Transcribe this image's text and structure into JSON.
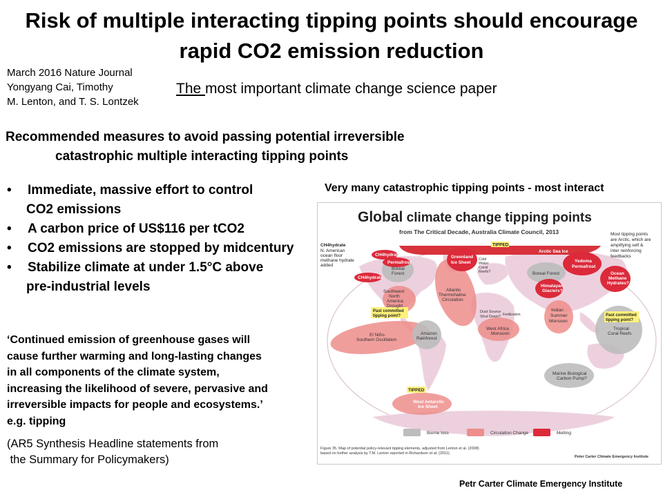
{
  "slide": {
    "title_line1": "Risk of multiple interacting tipping points should encourage",
    "title_line2": "rapid CO2 emission reduction",
    "citation_lines": [
      "March 2016 Nature Journal",
      "Yongyang Cai, Timothy",
      "M. Lenton,  and T. S. Lontzek"
    ],
    "subtitle_underlined": "The ",
    "subtitle_rest": "most important climate change science paper",
    "recommended_line1": "Recommended measures to avoid passing potential irreversible",
    "recommended_line2": "catastrophic  multiple interacting  tipping  points",
    "bullet_symbol": "•",
    "bullets": [
      {
        "text": "Immediate, massive effort to control",
        "cont": "CO2 emissions"
      },
      {
        "text": "A carbon price of US$116 per tCO2",
        "cont": ""
      },
      {
        "text": "CO2 emissions are stopped by midcentury",
        "cont": ""
      },
      {
        "text": "Stabilize climate at under 1.5°C above",
        "cont": "pre-industrial levels"
      }
    ],
    "quote_lines": [
      "‘Continued  emission  of greenhouse gases will",
      "cause further warming and long-lasting  changes",
      "in all components of the climate system,",
      "increasing the likelihood of severe, pervasive and",
      "irreversible impacts for people and ecosystems.’",
      "e.g. tipping"
    ],
    "ar5_lines": [
      "(AR5 Synthesis Headline statements from",
      " the Summary for Policymakers)"
    ],
    "map_heading": "Very many  catastrophic tipping points  - most interact",
    "footer_credit": "Petr Carter Climate Emergency Institute"
  },
  "map": {
    "title_bold": "Global",
    "title_rest": " climate change tipping points",
    "source": "from The Critical Decade, Australia Climate Council, 2013",
    "note_right": [
      "Most tipping points",
      "are Arctic, which are",
      "amplifying self &",
      "inter reinforcing",
      "feedbacks"
    ],
    "note_left": [
      "CH4hydrate",
      "N. American",
      "ocean floor",
      "methane hydrate",
      "added"
    ],
    "labels": {
      "ch4_1": "CH4hydrate",
      "ch4_2": "CH4hydrate",
      "permafrost": "Permafrost",
      "boreal_forest_na": [
        "Boreal",
        "Forest"
      ],
      "tipped_arctic": "TIPPED",
      "arctic_sea_ice": "Arctic Sea Ice",
      "greenland": [
        "Greenland",
        "Ice Sheet"
      ],
      "cold_water_coral": [
        "Cold",
        "Water",
        "Coral",
        "Reefs?"
      ],
      "yedoma": [
        "Yedoma",
        "Permafrost"
      ],
      "boreal_forest_eu": "Boreal Forest",
      "ocean_methane": [
        "Ocean",
        "Methane",
        "Hydrates?"
      ],
      "sw_na_drought": [
        "Southwest",
        "North",
        "America",
        "Drought"
      ],
      "amoc": [
        "Atlantic",
        "Thermohaline",
        "Circulation"
      ],
      "himalayan": [
        "Himalayan",
        "Glaciers?"
      ],
      "indian_monsoon": [
        "Indian",
        "Summer",
        "Monsoon"
      ],
      "past_committed_1": [
        "Past committed",
        "tipping point?"
      ],
      "past_committed_2": [
        "Past committed",
        "tipping point?"
      ],
      "dust_source": [
        "Dust Source",
        "Shut Down?"
      ],
      "fertilization": "Fertilization",
      "west_africa": [
        "West Africa",
        "Monsoon"
      ],
      "enso": [
        "El Niño-",
        "Southern Oscillation"
      ],
      "amazon": [
        "Amazon",
        "Rainforest"
      ],
      "coral_reefs": [
        "Tropical",
        "Coral Reefs"
      ],
      "marine_bio": [
        "Marine Biological",
        "Carbon Pump?"
      ],
      "tipped_wais": "TIPPED",
      "wais": [
        "West Antarctic",
        "Ice Sheet"
      ]
    },
    "legend": [
      "Biome loss",
      "Circulation Change",
      "Melting"
    ],
    "legend_colors": [
      "#bdbdbd",
      "#ee8e8b",
      "#dc2a3a"
    ],
    "caption_lines": [
      "Figure 35. Map of potential policy-relevant tipping elements, adjusted from Lenton et al. (2008)",
      "based on further analysis by T.M. Lenton reported in Richardson et al. (2011)."
    ],
    "credit": "Peter Carter  Climate Emergency Institute"
  }
}
